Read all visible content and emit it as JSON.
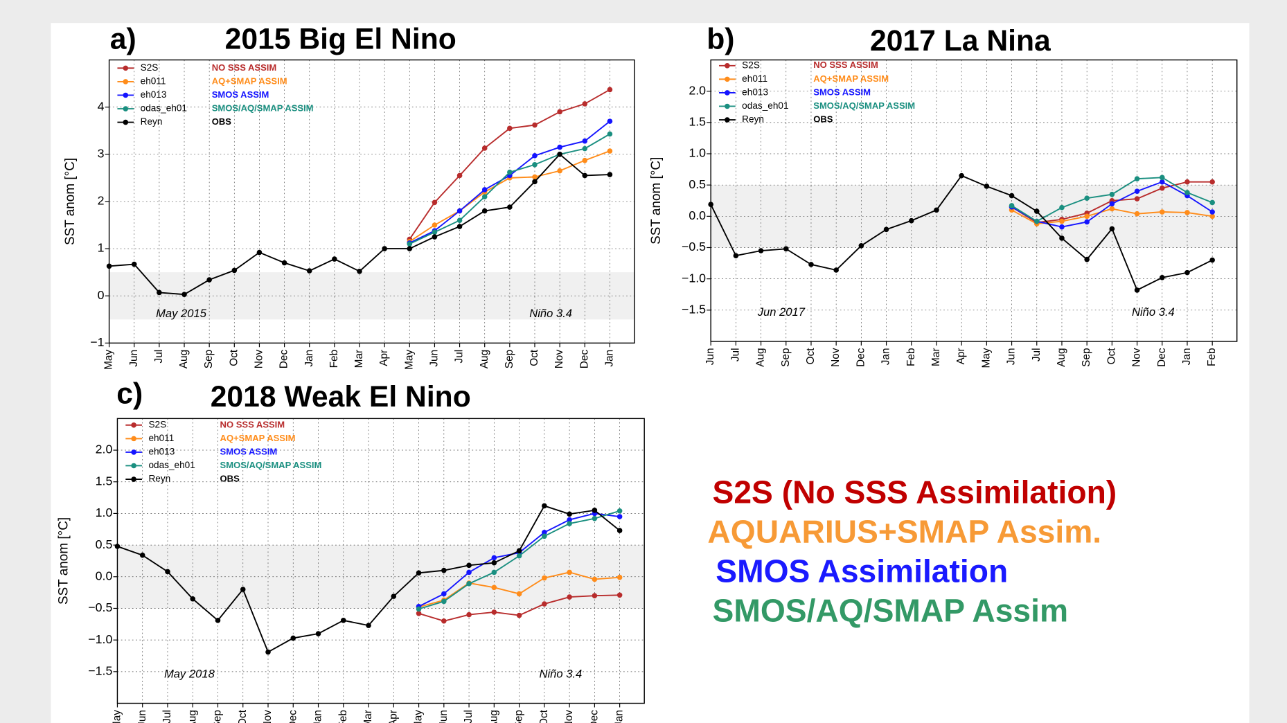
{
  "chart_data": [
    {
      "type": "line",
      "label": "a)",
      "title": "2015 Big El Nino",
      "ylabel": "SST anom [°C]",
      "categories": [
        "May",
        "Jun",
        "Jul",
        "Aug",
        "Sep",
        "Oct",
        "Nov",
        "Dec",
        "Jan",
        "Feb",
        "Mar",
        "Apr",
        "May",
        "Jun",
        "Jul",
        "Aug",
        "Sep",
        "Oct",
        "Nov",
        "Dec",
        "Jan"
      ],
      "ylim": [
        -1,
        5
      ],
      "yticks": [
        {
          "value": -1,
          "label": "−1"
        },
        0,
        1,
        2,
        3,
        4
      ],
      "grid": true,
      "shaded_band": [
        -0.5,
        0.5
      ],
      "annotations": [
        "May 2015",
        "Niño 3.4"
      ],
      "series": [
        {
          "name": "S2S",
          "note": "NO SSS ASSIM",
          "color": "#b82c2c",
          "values": [
            null,
            null,
            null,
            null,
            null,
            null,
            null,
            null,
            null,
            null,
            null,
            null,
            1.2,
            1.98,
            2.55,
            3.13,
            3.55,
            3.62,
            3.9,
            4.07,
            4.37
          ]
        },
        {
          "name": "eh011",
          "note": "AQ+SMAP ASSIM",
          "color": "#ff8c1a",
          "values": [
            null,
            null,
            null,
            null,
            null,
            null,
            null,
            null,
            null,
            null,
            null,
            null,
            1.15,
            1.5,
            1.8,
            2.2,
            2.5,
            2.52,
            2.65,
            2.87,
            3.07
          ]
        },
        {
          "name": "eh013",
          "note": "SMOS ASSIM",
          "color": "#1414ff",
          "values": [
            null,
            null,
            null,
            null,
            null,
            null,
            null,
            null,
            null,
            null,
            null,
            null,
            1.12,
            1.38,
            1.8,
            2.25,
            2.55,
            2.97,
            3.15,
            3.28,
            3.7
          ]
        },
        {
          "name": "odas_eh01",
          "note": "SMOS/AQ/SMAP ASSIM",
          "color": "#1a8f80",
          "values": [
            null,
            null,
            null,
            null,
            null,
            null,
            null,
            null,
            null,
            null,
            null,
            null,
            1.1,
            1.35,
            1.6,
            2.1,
            2.62,
            2.78,
            3.0,
            3.12,
            3.43
          ]
        },
        {
          "name": "Reyn",
          "note": "OBS",
          "color": "#000000",
          "values": [
            0.63,
            0.67,
            0.07,
            0.03,
            0.34,
            0.54,
            0.92,
            0.7,
            0.53,
            0.78,
            0.52,
            1.0,
            1.0,
            1.25,
            1.47,
            1.8,
            1.88,
            2.42,
            3.0,
            2.55,
            2.57
          ]
        }
      ]
    },
    {
      "type": "line",
      "label": "b)",
      "title": "2017 La Nina",
      "ylabel": "SST anom [°C]",
      "categories": [
        "Jun",
        "Jul",
        "Aug",
        "Sep",
        "Oct",
        "Nov",
        "Dec",
        "Jan",
        "Feb",
        "Mar",
        "Apr",
        "May",
        "Jun",
        "Jul",
        "Aug",
        "Sep",
        "Oct",
        "Nov",
        "Dec",
        "Jan",
        "Feb"
      ],
      "ylim": [
        -2,
        2.5
      ],
      "yticks": [
        {
          "value": -1.5,
          "label": "−1.5"
        },
        {
          "value": -1,
          "label": "−1.0"
        },
        {
          "value": -0.5,
          "label": "−0.5"
        },
        {
          "value": 0,
          "label": "0.0"
        },
        0.5,
        {
          "value": 1,
          "label": "1.0"
        },
        1.5,
        {
          "value": 2,
          "label": "2.0"
        }
      ],
      "grid": true,
      "shaded_band": [
        -0.5,
        0.5
      ],
      "annotations": [
        "Jun 2017",
        "Niño 3.4"
      ],
      "series": [
        {
          "name": "S2S",
          "note": "NO SSS ASSIM",
          "color": "#b82c2c",
          "values": [
            null,
            null,
            null,
            null,
            null,
            null,
            null,
            null,
            null,
            null,
            null,
            null,
            0.15,
            -0.1,
            -0.05,
            0.05,
            0.25,
            0.28,
            0.45,
            0.55,
            0.55
          ]
        },
        {
          "name": "eh011",
          "note": "AQ+SMAP ASSIM",
          "color": "#ff8c1a",
          "values": [
            null,
            null,
            null,
            null,
            null,
            null,
            null,
            null,
            null,
            null,
            null,
            null,
            0.1,
            -0.12,
            -0.08,
            0.0,
            0.12,
            0.04,
            0.07,
            0.06,
            0.0
          ]
        },
        {
          "name": "eh013",
          "note": "SMOS ASSIM",
          "color": "#1414ff",
          "values": [
            null,
            null,
            null,
            null,
            null,
            null,
            null,
            null,
            null,
            null,
            null,
            null,
            0.15,
            -0.08,
            -0.17,
            -0.09,
            0.2,
            0.4,
            0.55,
            0.33,
            0.07
          ]
        },
        {
          "name": "odas_eh01",
          "note": "SMOS/AQ/SMAP ASSIM",
          "color": "#1a8f80",
          "values": [
            null,
            null,
            null,
            null,
            null,
            null,
            null,
            null,
            null,
            null,
            null,
            null,
            0.17,
            -0.08,
            0.14,
            0.29,
            0.35,
            0.6,
            0.62,
            0.38,
            0.22
          ]
        },
        {
          "name": "Reyn",
          "note": "OBS",
          "color": "#000000",
          "values": [
            0.19,
            -0.63,
            -0.55,
            -0.52,
            -0.77,
            -0.86,
            -0.47,
            -0.21,
            -0.07,
            0.1,
            0.65,
            0.48,
            0.33,
            0.08,
            -0.35,
            -0.69,
            -0.2,
            -1.18,
            -0.98,
            -0.9,
            -0.7
          ]
        }
      ]
    },
    {
      "type": "line",
      "label": "c)",
      "title": "2018 Weak El Nino",
      "ylabel": "SST anom [°C]",
      "categories": [
        "May",
        "Jun",
        "Jul",
        "Aug",
        "Sep",
        "Oct",
        "Nov",
        "Dec",
        "Jan",
        "Feb",
        "Mar",
        "Apr",
        "May",
        "Jun",
        "Jul",
        "Aug",
        "Sep",
        "Oct",
        "Nov",
        "Dec",
        "Jan"
      ],
      "ylim": [
        -2,
        2.5
      ],
      "yticks": [
        {
          "value": -1.5,
          "label": "−1.5"
        },
        {
          "value": -1,
          "label": "−1.0"
        },
        {
          "value": -0.5,
          "label": "−0.5"
        },
        {
          "value": 0,
          "label": "0.0"
        },
        0.5,
        {
          "value": 1,
          "label": "1.0"
        },
        1.5,
        {
          "value": 2,
          "label": "2.0"
        }
      ],
      "grid": true,
      "shaded_band": [
        -0.5,
        0.5
      ],
      "annotations": [
        "May 2018",
        "Niño 3.4"
      ],
      "series": [
        {
          "name": "S2S",
          "note": "NO SSS ASSIM",
          "color": "#b82c2c",
          "values": [
            null,
            null,
            null,
            null,
            null,
            null,
            null,
            null,
            null,
            null,
            null,
            null,
            -0.58,
            -0.7,
            -0.6,
            -0.56,
            -0.61,
            -0.43,
            -0.32,
            -0.3,
            -0.29
          ]
        },
        {
          "name": "eh011",
          "note": "AQ+SMAP ASSIM",
          "color": "#ff8c1a",
          "values": [
            null,
            null,
            null,
            null,
            null,
            null,
            null,
            null,
            null,
            null,
            null,
            null,
            -0.48,
            -0.37,
            -0.1,
            -0.17,
            -0.27,
            -0.02,
            0.07,
            -0.04,
            -0.01
          ]
        },
        {
          "name": "eh013",
          "note": "SMOS ASSIM",
          "color": "#1414ff",
          "values": [
            null,
            null,
            null,
            null,
            null,
            null,
            null,
            null,
            null,
            null,
            null,
            null,
            -0.47,
            -0.27,
            0.07,
            0.3,
            0.38,
            0.7,
            0.9,
            1.0,
            0.95
          ]
        },
        {
          "name": "odas_eh01",
          "note": "SMOS/AQ/SMAP ASSIM",
          "color": "#1a8f80",
          "values": [
            null,
            null,
            null,
            null,
            null,
            null,
            null,
            null,
            null,
            null,
            null,
            null,
            -0.51,
            -0.39,
            -0.11,
            0.07,
            0.33,
            0.64,
            0.84,
            0.92,
            1.04
          ]
        },
        {
          "name": "Reyn",
          "note": "OBS",
          "color": "#000000",
          "values": [
            0.48,
            0.34,
            0.08,
            -0.35,
            -0.69,
            -0.2,
            -1.19,
            -0.97,
            -0.9,
            -0.69,
            -0.77,
            -0.31,
            0.06,
            0.1,
            0.18,
            0.22,
            0.41,
            1.12,
            0.99,
            1.05,
            0.73
          ]
        }
      ]
    }
  ],
  "notes": [
    {
      "text": "S2S (No SSS Assimilation)",
      "color": "#c00000"
    },
    {
      "text": "AQUARIUS+SMAP Assim.",
      "color": "#f79a36"
    },
    {
      "text": "SMOS Assimilation",
      "color": "#1a1aff"
    },
    {
      "text": "SMOS/AQ/SMAP Assim",
      "color": "#339966"
    }
  ]
}
